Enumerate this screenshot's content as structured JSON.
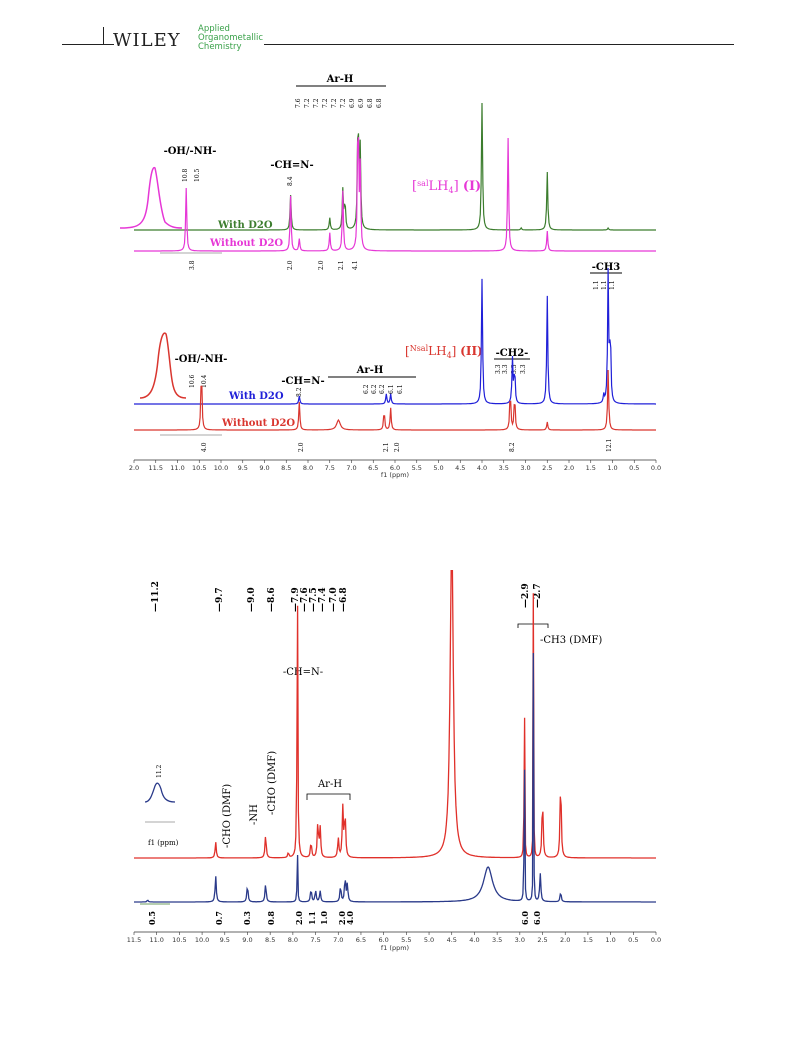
{
  "header": {
    "publisher": "WILEY",
    "journal_line1": "Applied",
    "journal_line2": "Organometallic",
    "journal_line3": "Chemistry"
  },
  "figure1": {
    "top": {
      "arh_label": "Ar-H",
      "arh_peaks": [
        "7.6",
        "7.2",
        "7.2",
        "7.2",
        "7.2",
        "7.2",
        "6.9",
        "6.9",
        "6.8",
        "6.8"
      ],
      "ohnh_label": "-OH/-NH-",
      "ohnh_peaks": [
        "10.8",
        "10.5"
      ],
      "chn_label": "-CH=N-",
      "chn_peak": "8.4",
      "compound": "[salLH4] (I)",
      "compound_sup": "sal",
      "compound_main": "LH",
      "compound_sub": "4",
      "compound_id": "(I)",
      "with_d2o": "With D2O",
      "without_d2o": "Without D2O",
      "integrals": [
        "3.8",
        "2.0",
        "2.0",
        "2.1",
        "4.1"
      ]
    },
    "bottom": {
      "ohnh_label": "-OH/-NH-",
      "ohnh_peaks": [
        "10.6",
        "10.4"
      ],
      "chn_label": "-CH=N-",
      "chn_peak": "8.2",
      "arh_label": "Ar-H",
      "arh_peaks": [
        "6.2",
        "6.2",
        "6.2",
        "6.1",
        "6.1"
      ],
      "ch2_label": "-CH2-",
      "ch2_peaks": [
        "3.3",
        "3.3",
        "3.3",
        "3.3"
      ],
      "ch3_label": "-CH3",
      "ch3_peaks": [
        "1.1",
        "1.1",
        "1.1"
      ],
      "compound_sup": "Nsal",
      "compound_main": "LH",
      "compound_sub": "4",
      "compound_id": "(II)",
      "with_d2o": "With D2O",
      "without_d2o": "Without D2O",
      "integrals": [
        "4.0",
        "2.0",
        "2.1",
        "2.0",
        "8.2",
        "12.1"
      ]
    },
    "axis_ticks": [
      "2.0",
      "11.5",
      "11.0",
      "10.5",
      "10.0",
      "9.5",
      "9.0",
      "8.5",
      "8.0",
      "7.5",
      "7.0",
      "6.5",
      "6.0",
      "5.5",
      "5.0",
      "4.5",
      "4.0",
      "3.5",
      "3.0",
      "2.5",
      "2.0",
      "1.5",
      "1.0",
      "0.5",
      "0.0"
    ],
    "axis_label": "f1 (ppm)"
  },
  "figure2": {
    "peak_labels": [
      "11.2",
      "9.7",
      "9.0",
      "8.6",
      "7.9",
      "7.6",
      "7.5",
      "7.4",
      "7.0",
      "6.8",
      "2.9",
      "2.7"
    ],
    "ch3_dmf": "-CH3 (DMF)",
    "chn_label": "-CH=N-",
    "arh_label": "Ar-H",
    "cho1": "-CHO (DMF)",
    "nh": "-NH",
    "cho2": "-CHO (DMF)",
    "inset_peak": "11.2",
    "inset_axis": "f1 (ppm)",
    "integrals": [
      "0.5",
      "0.7",
      "0.3",
      "0.8",
      "2.0",
      "1.1",
      "1.0",
      "2.0",
      "4.0",
      "6.0",
      "6.0"
    ],
    "axis_ticks": [
      "11.5",
      "11.0",
      "10.5",
      "10.0",
      "9.5",
      "9.0",
      "8.5",
      "8.0",
      "7.5",
      "7.0",
      "6.5",
      "6.0",
      "5.5",
      "5.0",
      "4.5",
      "4.0",
      "3.5",
      "3.0",
      "2.5",
      "2.0",
      "1.5",
      "1.0",
      "0.5",
      "0.0"
    ],
    "axis_label": "f1 (ppm)"
  },
  "colors": {
    "green": "#3c7d2e",
    "magenta": "#e637d6",
    "blue": "#2020d8",
    "red": "#d9362f",
    "navy": "#2a3a8a",
    "red2": "#e0302a"
  }
}
